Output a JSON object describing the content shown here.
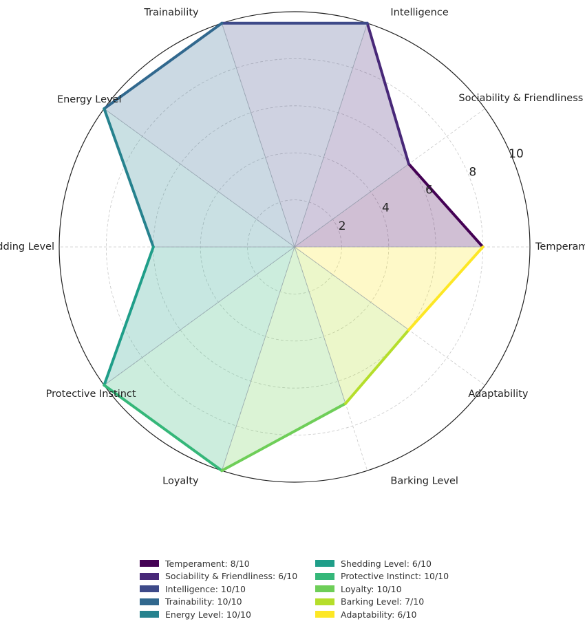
{
  "chart_data": {
    "type": "radar",
    "rmax": 10,
    "r_ticks": [
      2,
      4,
      6,
      8,
      10
    ],
    "grid": true,
    "legend_placement": "bottom",
    "axes": [
      {
        "label": "Temperament",
        "value": 8,
        "color": "#440154",
        "legend": "Temperament: 8/10"
      },
      {
        "label": "Sociability & Friendliness",
        "value": 6,
        "color": "#482878",
        "legend": "Sociability & Friendliness: 6/10"
      },
      {
        "label": "Intelligence",
        "value": 10,
        "color": "#3e4a89",
        "legend": "Intelligence: 10/10"
      },
      {
        "label": "Trainability",
        "value": 10,
        "color": "#31688e",
        "legend": "Trainability: 10/10"
      },
      {
        "label": "Energy Level",
        "value": 10,
        "color": "#26828e",
        "legend": "Energy Level: 10/10"
      },
      {
        "label": "Shedding Level",
        "value": 6,
        "color": "#1f9e89",
        "legend": "Shedding Level: 6/10"
      },
      {
        "label": "Protective Instinct",
        "value": 10,
        "color": "#35b779",
        "legend": "Protective Instinct: 10/10"
      },
      {
        "label": "Loyalty",
        "value": 10,
        "color": "#6ece58",
        "legend": "Loyalty: 10/10"
      },
      {
        "label": "Barking Level",
        "value": 7,
        "color": "#b5de2b",
        "legend": "Barking Level: 7/10"
      },
      {
        "label": "Adaptability",
        "value": 6,
        "color": "#fde725",
        "legend": "Adaptability: 6/10"
      }
    ]
  }
}
